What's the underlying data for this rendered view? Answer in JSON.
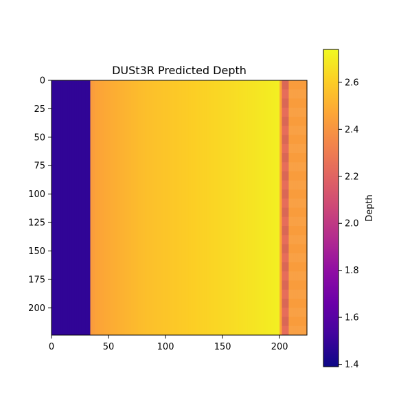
{
  "chart_data": {
    "type": "heatmap",
    "title": "DUSt3R Predicted Depth",
    "colormap": "plasma",
    "image_size": [
      224,
      224
    ],
    "x_ticks": [
      "0",
      "50",
      "100",
      "150",
      "200"
    ],
    "y_ticks": [
      "0",
      "25",
      "50",
      "75",
      "100",
      "125",
      "150",
      "175",
      "200"
    ],
    "xlim": [
      0,
      224
    ],
    "ylim": [
      0,
      224
    ],
    "colorbar": {
      "label": "Depth",
      "range": [
        1.39,
        2.74
      ],
      "ticks": [
        "1.4",
        "1.6",
        "1.8",
        "2.0",
        "2.2",
        "2.4",
        "2.6"
      ]
    },
    "depth_profile": {
      "x": [
        0,
        33,
        34,
        40,
        80,
        120,
        160,
        200,
        202,
        207,
        208,
        224
      ],
      "depth": [
        1.48,
        1.48,
        2.42,
        2.46,
        2.55,
        2.6,
        2.65,
        2.71,
        2.24,
        2.24,
        2.43,
        2.43
      ]
    },
    "row_pattern_period": 16
  }
}
